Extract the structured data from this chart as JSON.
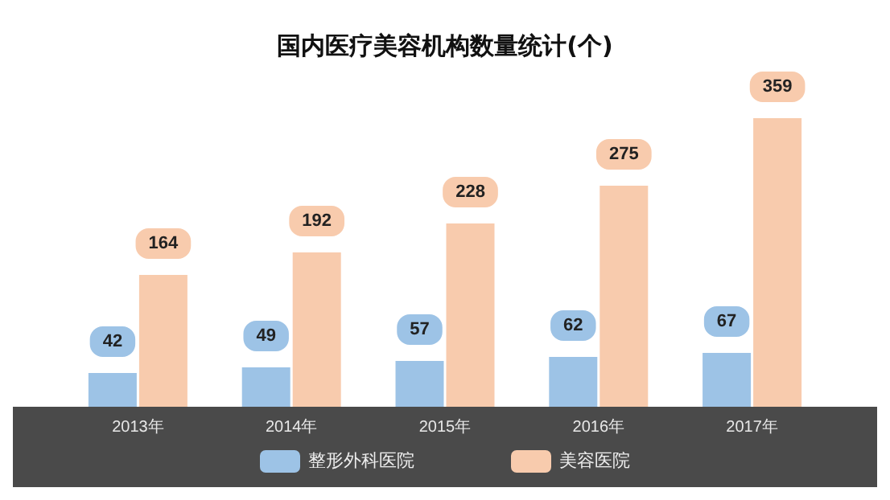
{
  "chart_data": {
    "type": "bar",
    "title": "国内医疗美容机构数量统计(个)",
    "categories": [
      "2013年",
      "2014年",
      "2015年",
      "2016年",
      "2017年"
    ],
    "series": [
      {
        "name": "整形外科医院",
        "color": "#9dc3e6",
        "values": [
          42,
          49,
          57,
          62,
          67
        ]
      },
      {
        "name": "美容医院",
        "color": "#f8cbad",
        "values": [
          164,
          192,
          228,
          275,
          359
        ]
      }
    ],
    "data_labels": true,
    "legend": "bottom"
  }
}
